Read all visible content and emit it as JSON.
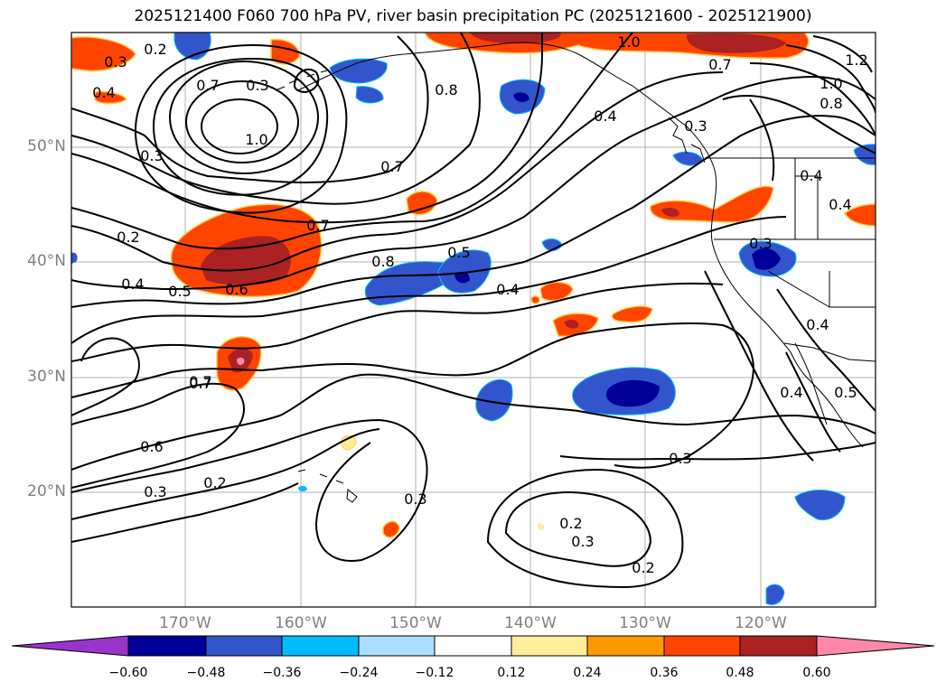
{
  "title": "2025121400 F060 700 hPa PV, river basin precipitation PC (2025121600 - 2025121900)",
  "lat_labels": [
    "50°N",
    "40°N",
    "30°N",
    "20°N"
  ],
  "lon_labels": [
    "170°W",
    "160°W",
    "150°W",
    "140°W",
    "130°W",
    "120°W"
  ],
  "colorbar": {
    "ticks": [
      "−0.60",
      "−0.48",
      "−0.36",
      "−0.24",
      "−0.12",
      "0.12",
      "0.24",
      "0.36",
      "0.48",
      "0.60"
    ],
    "colors": [
      "#9933cc",
      "#000099",
      "#3355cc",
      "#00bbff",
      "#aaddff",
      "#ffffff",
      "#ffee99",
      "#ff9900",
      "#ff4400",
      "#aa2222",
      "#ff88aa"
    ]
  },
  "contour_labels": [
    "0.2",
    "0.3",
    "0.4",
    "0.7",
    "0.3",
    "1.0",
    "0.3",
    "0.8",
    "1.0",
    "0.7",
    "1.2",
    "0.7",
    "1.0",
    "0.8",
    "0.4",
    "0.3",
    "0.7",
    "0.2",
    "0.7",
    "0.4",
    "0.4",
    "0.4",
    "0.5",
    "0.6",
    "0.8",
    "0.5",
    "0.4",
    "0.3",
    "0.4",
    "0.7",
    "0.4",
    "0.5",
    "0.6",
    "0.3",
    "0.2",
    "0.3",
    "0.3",
    "0.2",
    "0.3",
    "0.2"
  ]
}
